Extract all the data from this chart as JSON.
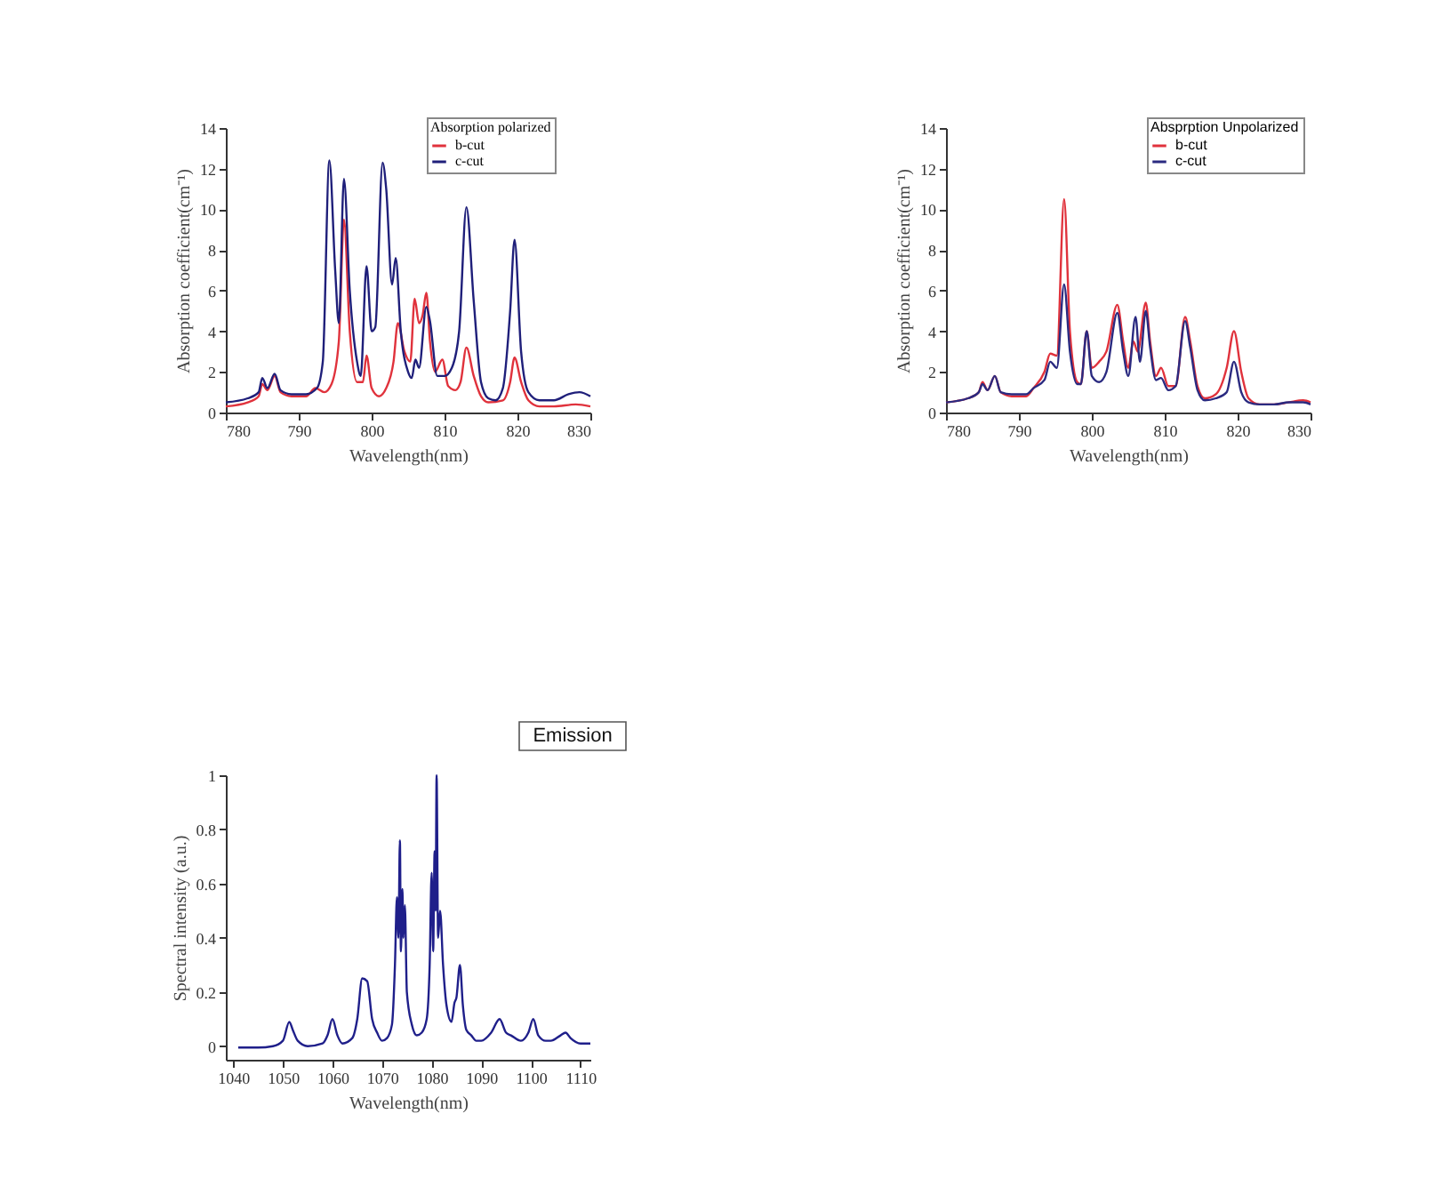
{
  "chart_data": [
    {
      "type": "line",
      "xlabel": "Wavelength(nm)",
      "ylabel": "Absorption coefficient(cm⁻¹)",
      "legend_title": "Absorption polarized",
      "legend": "top right",
      "xlim": [
        780,
        830
      ],
      "ylim": [
        0,
        14
      ],
      "xticks": [
        780,
        790,
        800,
        810,
        820,
        830
      ],
      "yticks": [
        0,
        2,
        4,
        6,
        8,
        10,
        12,
        14
      ],
      "series": [
        {
          "name": "b-cut",
          "color": "#e0323c",
          "x": [
            780,
            783,
            784.5,
            785,
            785.7,
            786.7,
            787.5,
            789,
            791,
            792.3,
            793.5,
            794.5,
            795.5,
            796.2,
            797,
            798,
            798.8,
            799.3,
            800,
            801,
            802,
            803,
            803.6,
            804.5,
            805.3,
            805.9,
            806.5,
            807,
            807.5,
            808,
            808.7,
            809.7,
            810.5,
            811.5,
            812.2,
            813,
            814,
            815,
            816,
            818,
            819,
            819.6,
            820.5,
            821.5,
            823,
            825,
            828,
            830
          ],
          "values": [
            0.3,
            0.5,
            0.8,
            1.4,
            1.1,
            1.8,
            1.0,
            0.8,
            0.8,
            1.2,
            1.0,
            1.4,
            3.5,
            9.5,
            4,
            1.5,
            1.5,
            2.8,
            1.2,
            0.8,
            1.2,
            2.5,
            4.4,
            3,
            2.5,
            5.6,
            4.4,
            4.8,
            5.9,
            3.5,
            2.0,
            2.6,
            1.3,
            1.1,
            1.5,
            3.2,
            1.8,
            0.8,
            0.5,
            0.6,
            1.5,
            2.7,
            1.5,
            0.6,
            0.3,
            0.3,
            0.4,
            0.3
          ]
        },
        {
          "name": "c-cut",
          "color": "#1f1f7a",
          "x": [
            780,
            783,
            784.5,
            785,
            785.7,
            786.7,
            787.5,
            789,
            791,
            792.5,
            793.3,
            794.2,
            795,
            795.5,
            796.2,
            797,
            798,
            798.5,
            799.3,
            800,
            800.5,
            801.5,
            802,
            802.8,
            803.3,
            804,
            805,
            805.5,
            806,
            806.5,
            807.5,
            808,
            809,
            810,
            811,
            812,
            813,
            814,
            815,
            816,
            817,
            818,
            819,
            819.6,
            820.5,
            821.5,
            823,
            825,
            827,
            828.5,
            830
          ],
          "values": [
            0.5,
            0.7,
            1.0,
            1.7,
            1.2,
            1.9,
            1.1,
            0.9,
            0.9,
            1.2,
            2.5,
            12.4,
            7,
            4.4,
            11.5,
            6,
            2.5,
            1.8,
            7.2,
            4,
            4.2,
            12.3,
            11,
            6.3,
            7.6,
            4,
            2,
            1.7,
            2.6,
            2.2,
            5.2,
            4.5,
            1.8,
            1.8,
            2.2,
            4,
            10.1,
            5.5,
            1.5,
            0.7,
            0.6,
            1.2,
            5,
            8.5,
            3,
            1,
            0.6,
            0.6,
            0.9,
            1.0,
            0.8
          ]
        }
      ]
    },
    {
      "type": "line",
      "xlabel": "Wavelength(nm)",
      "ylabel": "Absorption coefficient(cm⁻¹)",
      "legend_title": "Absprption Unpolarized",
      "legend": "top right",
      "xlim": [
        780,
        830
      ],
      "ylim": [
        0,
        14
      ],
      "xticks": [
        780,
        790,
        800,
        810,
        820,
        830
      ],
      "yticks": [
        0,
        2,
        4,
        6,
        8,
        10,
        12,
        14
      ],
      "series": [
        {
          "name": "b-cut",
          "color": "#e0323c",
          "x": [
            780,
            783,
            784.5,
            785,
            785.7,
            786.7,
            787.5,
            789,
            791,
            792,
            793.5,
            794.3,
            795.2,
            796.2,
            797,
            798,
            798.5,
            799.3,
            800,
            801,
            802,
            803.5,
            804.3,
            805,
            805.7,
            806.3,
            807.4,
            808,
            808.8,
            809.5,
            810.5,
            811.5,
            812.8,
            813.5,
            814.5,
            815.5,
            817,
            818.5,
            819.5,
            820.5,
            821.5,
            823,
            825,
            827,
            829,
            830
          ],
          "values": [
            0.5,
            0.7,
            1.0,
            1.5,
            1.1,
            1.8,
            1.0,
            0.8,
            0.8,
            1.2,
            2.0,
            2.9,
            2.8,
            10.5,
            4,
            1.5,
            1.4,
            4.0,
            2.2,
            2.5,
            3.0,
            5.3,
            3.5,
            2.2,
            3.5,
            3.0,
            5.4,
            3.5,
            1.8,
            2.2,
            1.3,
            1.3,
            4.7,
            3.5,
            1.3,
            0.7,
            0.9,
            2.2,
            4.0,
            2.0,
            0.7,
            0.4,
            0.4,
            0.5,
            0.6,
            0.5
          ]
        },
        {
          "name": "c-cut",
          "color": "#2a2a80",
          "x": [
            780,
            783,
            784.5,
            785,
            785.7,
            786.7,
            787.5,
            789,
            791,
            792,
            793.5,
            794.3,
            795.2,
            796.2,
            797,
            798,
            798.5,
            799.3,
            800,
            801,
            802,
            803.5,
            804.3,
            805,
            806,
            806.6,
            807.4,
            808,
            808.8,
            809.5,
            810.5,
            811.5,
            812.8,
            813.5,
            814.5,
            815.5,
            817,
            818.5,
            819.5,
            820.5,
            821.5,
            823,
            825,
            827,
            829,
            830
          ],
          "values": [
            0.5,
            0.7,
            1.0,
            1.4,
            1.1,
            1.8,
            1.0,
            0.9,
            0.9,
            1.2,
            1.6,
            2.5,
            2.2,
            6.3,
            3,
            1.4,
            1.4,
            4.0,
            1.8,
            1.5,
            2.0,
            4.9,
            3,
            1.8,
            4.7,
            2.5,
            5.0,
            3.2,
            1.6,
            1.7,
            1.1,
            1.3,
            4.5,
            3.2,
            1.1,
            0.6,
            0.7,
            1.0,
            2.5,
            1.0,
            0.5,
            0.4,
            0.4,
            0.5,
            0.5,
            0.4
          ]
        }
      ]
    },
    {
      "type": "line",
      "xlabel": "Wavelength(nm)",
      "ylabel": "Spectral intensity (a.u.)",
      "annotations": [
        "Emission"
      ],
      "xlim": [
        1038.5,
        1112
      ],
      "ylim": [
        -0.05,
        1
      ],
      "xticks": [
        1040,
        1050,
        1060,
        1070,
        1080,
        1090,
        1100,
        1110
      ],
      "yticks": [
        0,
        0.2,
        0.4,
        0.6,
        0.8,
        1
      ],
      "series": [
        {
          "color": "#1f1f8a",
          "x": [
            1041,
            1045,
            1048,
            1050,
            1051.3,
            1052,
            1053,
            1055,
            1058,
            1059,
            1060,
            1061,
            1062,
            1064,
            1065,
            1066,
            1067,
            1068,
            1069,
            1070,
            1071,
            1072,
            1072.6,
            1073,
            1073.3,
            1073.6,
            1073.8,
            1074.1,
            1074.3,
            1074.6,
            1075,
            1076,
            1077,
            1078,
            1079,
            1079.6,
            1080,
            1080.3,
            1080.6,
            1080.8,
            1081,
            1081.3,
            1081.7,
            1082.3,
            1083,
            1084,
            1084.6,
            1085,
            1085.7,
            1086.3,
            1087,
            1088,
            1089,
            1090,
            1092,
            1093.7,
            1095,
            1096,
            1098,
            1099.5,
            1100.5,
            1101.5,
            1103,
            1104,
            1106,
            1107,
            1108,
            1110,
            1112
          ],
          "values": [
            -0.005,
            -0.005,
            0,
            0.02,
            0.09,
            0.06,
            0.02,
            0,
            0.01,
            0.04,
            0.1,
            0.04,
            0.01,
            0.03,
            0.1,
            0.25,
            0.24,
            0.1,
            0.05,
            0.02,
            0.03,
            0.08,
            0.3,
            0.55,
            0.4,
            0.76,
            0.35,
            0.58,
            0.4,
            0.52,
            0.2,
            0.08,
            0.04,
            0.05,
            0.1,
            0.3,
            0.64,
            0.35,
            0.72,
            0.5,
            1.0,
            0.4,
            0.5,
            0.3,
            0.15,
            0.09,
            0.16,
            0.18,
            0.3,
            0.15,
            0.06,
            0.04,
            0.02,
            0.02,
            0.05,
            0.1,
            0.05,
            0.04,
            0.02,
            0.05,
            0.1,
            0.04,
            0.02,
            0.02,
            0.04,
            0.05,
            0.03,
            0.01,
            0.01
          ]
        }
      ]
    }
  ]
}
